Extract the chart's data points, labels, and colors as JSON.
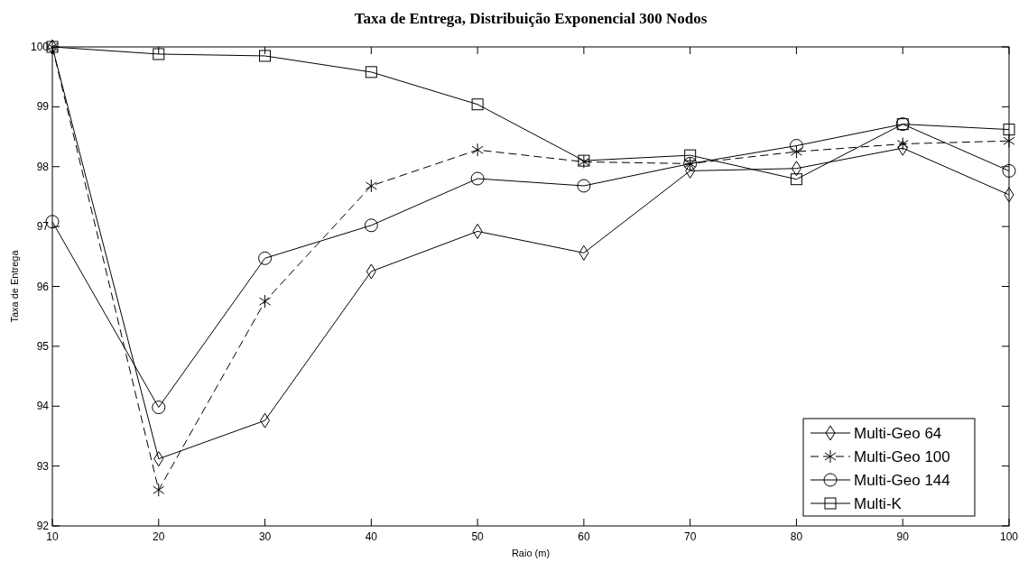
{
  "chart_data": {
    "type": "line",
    "title": "Taxa de Entrega, Distribuição Exponencial 300 Nodos",
    "xlabel": "Raio (m)",
    "ylabel": "Taxa de Entrega",
    "x": [
      10,
      20,
      30,
      40,
      50,
      60,
      70,
      80,
      90,
      100
    ],
    "xlim": [
      10,
      100
    ],
    "xticks": [
      10,
      20,
      30,
      40,
      50,
      60,
      70,
      80,
      90,
      100
    ],
    "ylim": [
      92,
      100
    ],
    "yticks": [
      92,
      93,
      94,
      95,
      96,
      97,
      98,
      99,
      100
    ],
    "grid": false,
    "legend": "bottom right",
    "series": [
      {
        "name": "Multi-Geo 64",
        "color": "#000000",
        "marker": "diamond",
        "line_style": "solid",
        "values": [
          100,
          93.12,
          93.76,
          96.25,
          96.92,
          96.56,
          97.93,
          97.97,
          98.31,
          97.53
        ]
      },
      {
        "name": "Multi-Geo 100",
        "color": "#000000",
        "marker": "cross",
        "line_style": "dashed",
        "values": [
          100,
          92.6,
          95.75,
          97.68,
          98.28,
          98.08,
          98.05,
          98.25,
          98.38,
          98.43
        ]
      },
      {
        "name": "Multi-Geo 144",
        "color": "#000000",
        "marker": "circle",
        "line_style": "solid",
        "values": [
          97.08,
          93.98,
          96.47,
          97.02,
          97.8,
          97.68,
          98.05,
          98.35,
          98.71,
          97.93
        ]
      },
      {
        "name": "Multi-K",
        "color": "#000000",
        "marker": "square",
        "line_style": "solid",
        "values": [
          100,
          99.88,
          99.85,
          99.58,
          99.04,
          98.1,
          98.19,
          97.79,
          98.71,
          98.62
        ]
      }
    ]
  }
}
